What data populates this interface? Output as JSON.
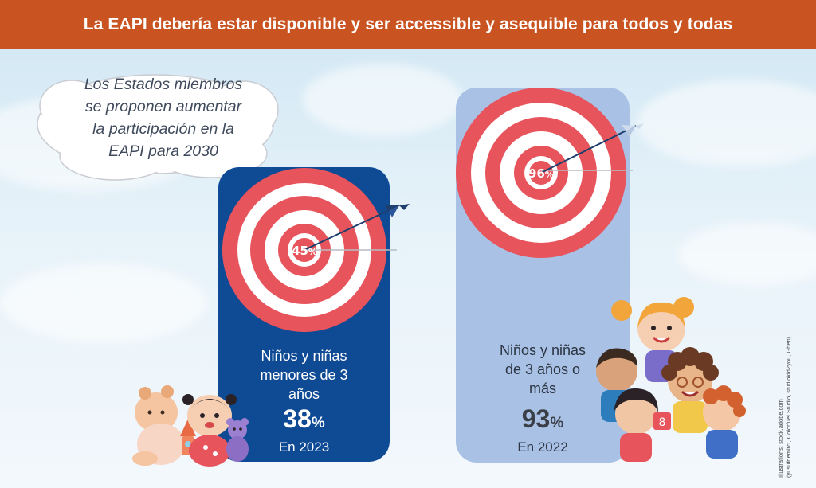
{
  "header": {
    "title": "La EAPI debería estar disponible y ser accessible y asequible para todos y todas"
  },
  "bubble": {
    "lines": [
      "Los Estados miembros",
      "se proponen aumentar",
      "la participación en la",
      "EAPI para 2030"
    ]
  },
  "targets": [
    {
      "goal_pct": "45",
      "pct_sign": "%",
      "goal_value": 45
    },
    {
      "goal_pct": "96",
      "pct_sign": "%",
      "goal_value": 96
    }
  ],
  "cards": [
    {
      "label_lines": [
        "Niños y niñas",
        "menores de 3",
        "años"
      ],
      "value": "38",
      "pct_sign": "%",
      "year": "En 2023",
      "share": 38
    },
    {
      "label_lines": [
        "Niños y niñas",
        "de 3 años o",
        "más"
      ],
      "value": "93",
      "pct_sign": "%",
      "year": "En 2022",
      "share": 93
    }
  ],
  "credit": {
    "lines": [
      "Illustrations: stock.adobe.com",
      "(yusufdemirci, Colorfuel Studio, studiokid2you, Ghen)"
    ]
  },
  "colors": {
    "header": "#c95422",
    "card_dark": "#0f4a95",
    "card_light": "#a9c1e4",
    "target_red": "#e8545c",
    "arrow": "#1e3f6e"
  }
}
